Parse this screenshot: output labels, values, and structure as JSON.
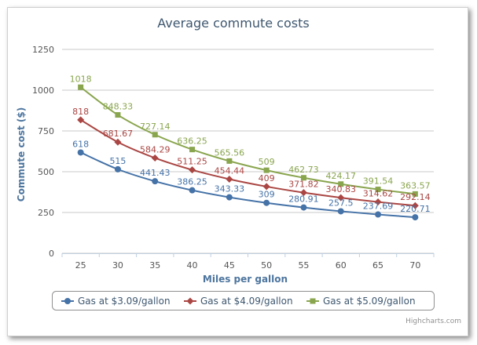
{
  "chart_data": {
    "type": "line",
    "title": "Average commute costs",
    "xlabel": "Miles per gallon",
    "ylabel": "Commute cost ($)",
    "x": [
      25,
      30,
      35,
      40,
      45,
      50,
      55,
      60,
      65,
      70
    ],
    "ylim": [
      0,
      1250
    ],
    "yticks": [
      0,
      250,
      500,
      750,
      1000,
      1250
    ],
    "grid": true,
    "legend_position": "bottom",
    "series": [
      {
        "name": "Gas at $3.09/gallon",
        "color": "#4572a7",
        "marker": "circle",
        "values": [
          618,
          515,
          441.43,
          386.25,
          343.33,
          309,
          280.91,
          257.5,
          237.69,
          220.71
        ]
      },
      {
        "name": "Gas at $4.09/gallon",
        "color": "#aa4643",
        "marker": "diamond",
        "values": [
          818,
          681.67,
          584.29,
          511.25,
          454.44,
          409,
          371.82,
          340.83,
          314.62,
          292.14
        ]
      },
      {
        "name": "Gas at $5.09/gallon",
        "color": "#89a54e",
        "marker": "square",
        "values": [
          1018,
          848.33,
          727.14,
          636.25,
          565.56,
          509,
          462.73,
          424.17,
          391.54,
          363.57
        ]
      }
    ]
  },
  "credits": "Highcharts.com"
}
